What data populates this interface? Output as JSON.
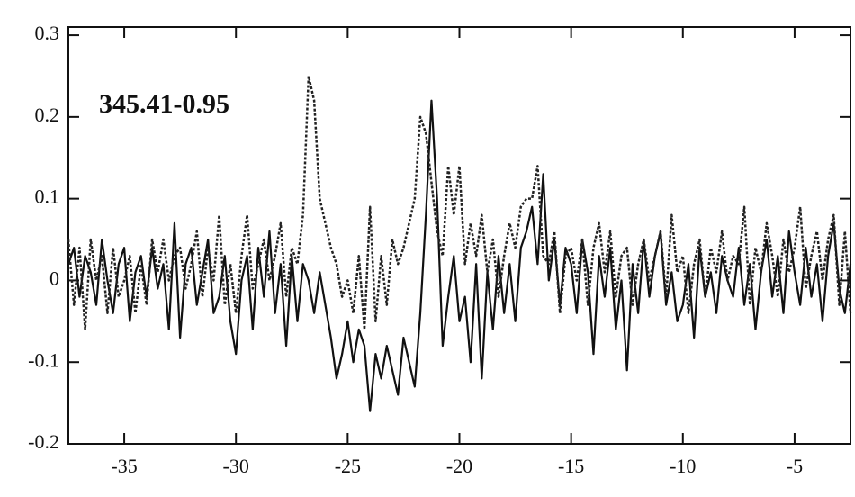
{
  "chart_data": {
    "type": "line",
    "annotation": "345.41-0.95",
    "x": [
      -37.5,
      -37.25,
      -37,
      -36.75,
      -36.5,
      -36.25,
      -36,
      -35.75,
      -35.5,
      -35.25,
      -35,
      -34.75,
      -34.5,
      -34.25,
      -34,
      -33.75,
      -33.5,
      -33.25,
      -33,
      -32.75,
      -32.5,
      -32.25,
      -32,
      -31.75,
      -31.5,
      -31.25,
      -31,
      -30.75,
      -30.5,
      -30.25,
      -30,
      -29.75,
      -29.5,
      -29.25,
      -29,
      -28.75,
      -28.5,
      -28.25,
      -28,
      -27.75,
      -27.5,
      -27.25,
      -27,
      -26.75,
      -26.5,
      -26.25,
      -26,
      -25.75,
      -25.5,
      -25.25,
      -25,
      -24.75,
      -24.5,
      -24.25,
      -24,
      -23.75,
      -23.5,
      -23.25,
      -23,
      -22.75,
      -22.5,
      -22.25,
      -22,
      -21.75,
      -21.5,
      -21.25,
      -21,
      -20.75,
      -20.5,
      -20.25,
      -20,
      -19.75,
      -19.5,
      -19.25,
      -19,
      -18.75,
      -18.5,
      -18.25,
      -18,
      -17.75,
      -17.5,
      -17.25,
      -17,
      -16.75,
      -16.5,
      -16.25,
      -16,
      -15.75,
      -15.5,
      -15.25,
      -15,
      -14.75,
      -14.5,
      -14.25,
      -14,
      -13.75,
      -13.5,
      -13.25,
      -13,
      -12.75,
      -12.5,
      -12.25,
      -12,
      -11.75,
      -11.5,
      -11.25,
      -11,
      -10.75,
      -10.5,
      -10.25,
      -10,
      -9.75,
      -9.5,
      -9.25,
      -9,
      -8.75,
      -8.5,
      -8.25,
      -8,
      -7.75,
      -7.5,
      -7.25,
      -7,
      -6.75,
      -6.5,
      -6.25,
      -6,
      -5.75,
      -5.5,
      -5.25,
      -5,
      -4.75,
      -4.5,
      -4.25,
      -4,
      -3.75,
      -3.5,
      -3.25,
      -3,
      -2.75,
      -2.5
    ],
    "series": [
      {
        "color": "#111111",
        "style": "solid",
        "values": [
          0.02,
          0.04,
          -0.02,
          0.03,
          0.01,
          -0.03,
          0.05,
          0.0,
          -0.04,
          0.02,
          0.04,
          -0.05,
          0.01,
          0.03,
          -0.02,
          0.04,
          -0.01,
          0.02,
          -0.06,
          0.07,
          -0.07,
          0.02,
          0.04,
          -0.03,
          0.01,
          0.05,
          -0.04,
          -0.02,
          0.03,
          -0.05,
          -0.09,
          0.0,
          0.03,
          -0.06,
          0.04,
          -0.02,
          0.06,
          -0.04,
          0.02,
          -0.08,
          0.03,
          -0.05,
          0.02,
          0.0,
          -0.04,
          0.01,
          -0.03,
          -0.07,
          -0.12,
          -0.09,
          -0.05,
          -0.1,
          -0.06,
          -0.08,
          -0.16,
          -0.09,
          -0.12,
          -0.08,
          -0.11,
          -0.14,
          -0.07,
          -0.1,
          -0.13,
          -0.04,
          0.08,
          0.22,
          0.1,
          -0.08,
          -0.02,
          0.03,
          -0.05,
          -0.02,
          -0.1,
          0.02,
          -0.12,
          0.01,
          -0.06,
          0.03,
          -0.04,
          0.02,
          -0.05,
          0.04,
          0.06,
          0.09,
          0.02,
          0.13,
          0.0,
          0.05,
          -0.03,
          0.04,
          0.02,
          -0.04,
          0.05,
          0.01,
          -0.09,
          0.03,
          -0.02,
          0.04,
          -0.06,
          0.0,
          -0.11,
          0.02,
          -0.04,
          0.05,
          -0.02,
          0.03,
          0.06,
          -0.03,
          0.01,
          -0.05,
          -0.03,
          0.02,
          -0.07,
          0.04,
          -0.02,
          0.01,
          -0.04,
          0.03,
          0.0,
          -0.02,
          0.04,
          -0.03,
          0.02,
          -0.06,
          0.01,
          0.05,
          -0.02,
          0.03,
          -0.04,
          0.06,
          0.01,
          -0.03,
          0.04,
          -0.02,
          0.02,
          -0.05,
          0.03,
          0.07,
          -0.01,
          -0.04,
          0.02
        ]
      },
      {
        "color": "#222222",
        "style": "dotted",
        "values": [
          0.05,
          -0.03,
          0.04,
          -0.06,
          0.05,
          0.0,
          0.03,
          -0.04,
          0.04,
          -0.02,
          0.0,
          0.03,
          -0.04,
          0.02,
          -0.03,
          0.05,
          0.01,
          0.05,
          0.0,
          0.03,
          0.04,
          -0.01,
          0.02,
          0.06,
          -0.02,
          0.04,
          0.0,
          0.08,
          -0.03,
          0.02,
          -0.04,
          0.03,
          0.08,
          -0.01,
          0.02,
          0.05,
          0.0,
          0.03,
          0.07,
          -0.02,
          0.04,
          0.02,
          0.08,
          0.25,
          0.22,
          0.1,
          0.07,
          0.04,
          0.02,
          -0.02,
          0.0,
          -0.04,
          0.03,
          -0.06,
          0.09,
          -0.05,
          0.03,
          -0.03,
          0.05,
          0.02,
          0.04,
          0.07,
          0.1,
          0.2,
          0.18,
          0.12,
          0.06,
          0.03,
          0.14,
          0.08,
          0.14,
          0.02,
          0.07,
          0.03,
          0.08,
          0.01,
          0.05,
          -0.02,
          0.03,
          0.07,
          0.04,
          0.09,
          0.1,
          0.1,
          0.14,
          0.03,
          0.02,
          0.06,
          -0.04,
          0.03,
          0.04,
          0.0,
          0.05,
          -0.03,
          0.04,
          0.07,
          0.01,
          0.06,
          -0.02,
          0.03,
          0.04,
          -0.03,
          0.02,
          0.05,
          0.0,
          0.03,
          0.06,
          -0.02,
          0.08,
          0.01,
          0.03,
          -0.04,
          0.02,
          0.05,
          -0.02,
          0.04,
          0.01,
          0.06,
          0.0,
          0.03,
          0.02,
          0.09,
          -0.03,
          0.04,
          0.01,
          0.07,
          0.03,
          -0.02,
          0.05,
          0.01,
          0.04,
          0.09,
          -0.01,
          0.03,
          0.06,
          0.0,
          0.05,
          0.08,
          -0.03,
          0.06,
          -0.04
        ]
      }
    ],
    "xlim": [
      -37.5,
      -2.5
    ],
    "ylim": [
      -0.2,
      0.31
    ],
    "xticks": [
      -35,
      -30,
      -25,
      -20,
      -15,
      -10,
      -5
    ],
    "yticks": [
      -0.2,
      -0.1,
      0,
      0.1,
      0.2,
      0.3
    ]
  }
}
